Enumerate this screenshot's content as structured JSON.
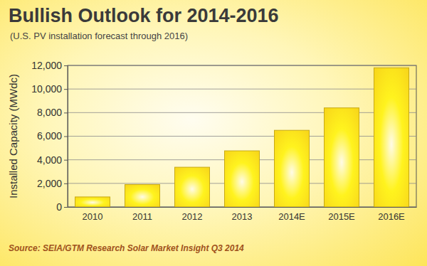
{
  "chart_data": {
    "type": "bar",
    "title": "Bullish Outlook for 2014-2016",
    "subtitle": "(U.S. PV installation forecast through 2016)",
    "y_label": "Installed Capacity (MWdc)",
    "source": "Source: SEIA/GTM Research Solar Market Insight Q3 2014",
    "categories": [
      "2010",
      "2011",
      "2012",
      "2013",
      "2014E",
      "2015E",
      "2016E"
    ],
    "values": [
      850,
      1900,
      3370,
      4760,
      6500,
      8400,
      11800
    ],
    "color": "#f7d31a",
    "ylim": [
      0,
      12000
    ],
    "yticks": [
      0,
      {
        "value": 2000,
        "label": "2,000"
      },
      {
        "value": 4000,
        "label": "4,000"
      },
      {
        "value": 6000,
        "label": "6,000"
      },
      {
        "value": 8000,
        "label": "8,000"
      },
      {
        "value": 10000,
        "label": "10,000"
      },
      {
        "value": 12000,
        "label": "12,000"
      }
    ],
    "grid": true
  }
}
